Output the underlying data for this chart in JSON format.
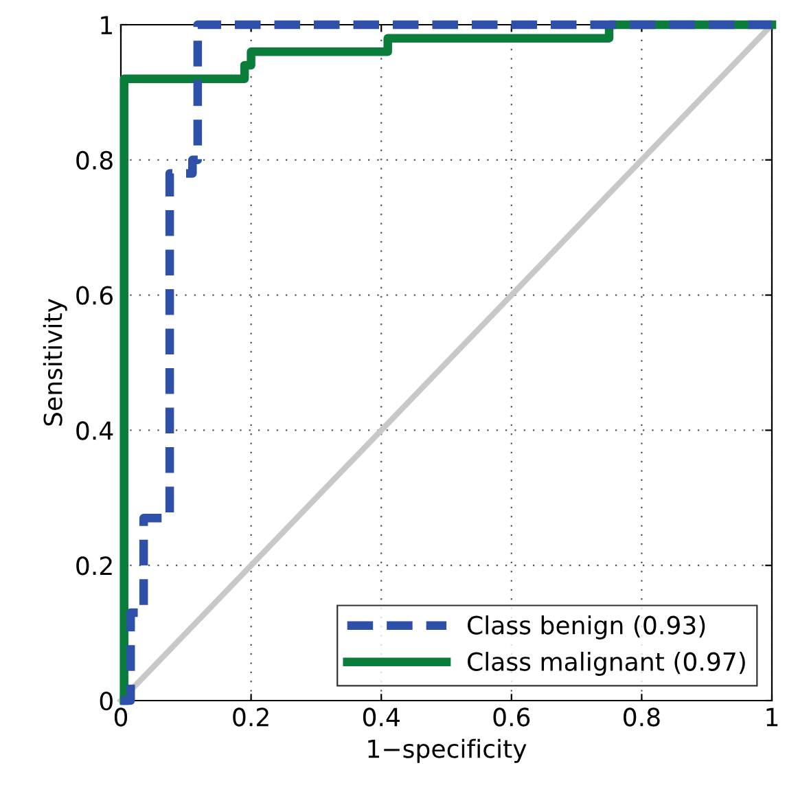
{
  "chart_data": {
    "type": "line",
    "xlabel": "1−specificity",
    "ylabel": "Sensitivity",
    "xlim": [
      0,
      1
    ],
    "ylim": [
      0,
      1
    ],
    "xticks": [
      0,
      0.2,
      0.4,
      0.6,
      0.8,
      1
    ],
    "yticks": [
      0,
      0.2,
      0.4,
      0.6,
      0.8,
      1
    ],
    "grid": true,
    "legend": "bottom right",
    "marker": "none",
    "series": [
      {
        "name": "Class benign (0.93)",
        "color": "#2e50a8",
        "line_style": "dashed",
        "x": [
          0,
          0.015,
          0.015,
          0.035,
          0.035,
          0.075,
          0.075,
          0.11,
          0.11,
          0.118,
          0.118,
          1
        ],
        "values": [
          0,
          0,
          0.13,
          0.13,
          0.27,
          0.27,
          0.78,
          0.78,
          0.8,
          0.8,
          1,
          1
        ]
      },
      {
        "name": "Class malignant (0.97)",
        "color": "#0a7d3a",
        "line_style": "solid",
        "x": [
          0.005,
          0.005,
          0.19,
          0.19,
          0.2,
          0.2,
          0.41,
          0.41,
          0.75,
          0.75,
          1
        ],
        "values": [
          0,
          0.92,
          0.92,
          0.94,
          0.94,
          0.96,
          0.96,
          0.98,
          0.98,
          1,
          1
        ]
      },
      {
        "color": "#c8c8c8",
        "line_style": "solid",
        "x": [
          0,
          1
        ],
        "values": [
          0,
          1
        ]
      }
    ]
  }
}
